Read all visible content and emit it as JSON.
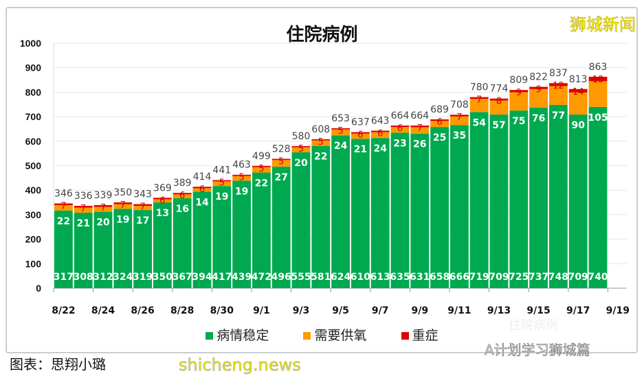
{
  "watermark_top": "狮城新闻",
  "watermark_site": "shicheng.news",
  "watermark_account": "A计划学习狮城篇",
  "watermark_ghost": "住院病例",
  "credit": "图表：思翔小璐",
  "colors": {
    "stable": "#00a94f",
    "oxygen": "#ff9900",
    "icu": "#e00000"
  },
  "chart_data": {
    "type": "bar",
    "stacked": true,
    "title": "住院病例",
    "ylim": [
      0,
      1000
    ],
    "yticks": [
      0,
      100,
      200,
      300,
      400,
      500,
      600,
      700,
      800,
      900,
      1000
    ],
    "grid": true,
    "legend_position": "bottom",
    "categories": [
      "8/22",
      "8/23",
      "8/24",
      "8/25",
      "8/26",
      "8/27",
      "8/28",
      "8/29",
      "8/30",
      "8/31",
      "9/1",
      "9/2",
      "9/3",
      "9/4",
      "9/5",
      "9/6",
      "9/7",
      "9/8",
      "9/9",
      "9/10",
      "9/11",
      "9/12",
      "9/13",
      "9/14",
      "9/15",
      "9/16",
      "9/17",
      "9/18"
    ],
    "xtick_labels": [
      "8/22",
      "8/24",
      "8/26",
      "8/28",
      "8/30",
      "9/1",
      "9/3",
      "9/5",
      "9/7",
      "9/9",
      "9/11",
      "9/13",
      "9/15",
      "9/17",
      "9/19"
    ],
    "series": [
      {
        "name": "病情稳定",
        "values": [
          317,
          308,
          312,
          324,
          319,
          350,
          367,
          394,
          417,
          439,
          472,
          496,
          555,
          581,
          624,
          610,
          613,
          635,
          631,
          658,
          666,
          719,
          709,
          725,
          737,
          748,
          709,
          740
        ]
      },
      {
        "name": "需要供氧",
        "values": [
          22,
          21,
          20,
          19,
          17,
          13,
          16,
          14,
          19,
          19,
          22,
          27,
          20,
          22,
          24,
          21,
          24,
          23,
          26,
          25,
          35,
          54,
          57,
          75,
          76,
          77,
          90,
          105
        ]
      },
      {
        "name": "重症",
        "values": [
          7,
          7,
          7,
          7,
          7,
          6,
          6,
          6,
          5,
          5,
          5,
          5,
          5,
          5,
          5,
          6,
          6,
          6,
          7,
          6,
          7,
          7,
          8,
          9,
          9,
          12,
          14,
          18
        ]
      }
    ],
    "totals": [
      346,
      336,
      339,
      350,
      343,
      369,
      389,
      414,
      441,
      463,
      499,
      528,
      580,
      608,
      653,
      637,
      643,
      664,
      664,
      689,
      708,
      780,
      774,
      809,
      822,
      837,
      813,
      863
    ]
  }
}
